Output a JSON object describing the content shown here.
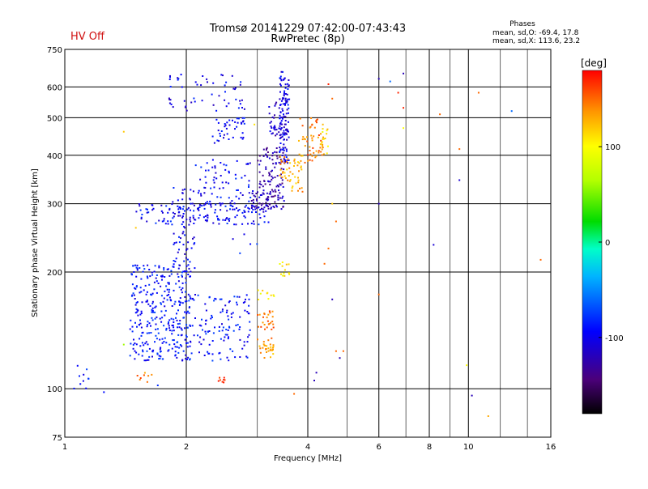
{
  "header": {
    "status": "HV Off",
    "status_color": "#d01010",
    "title_line1": "Tromsø 20141229 07:42:00-07:43:43",
    "title_line2": "RwPretec (8p)",
    "phases_title": "Phases",
    "phases_o": "mean, sd,O: -69.4, 17.8",
    "phases_x": "mean, sd,X: 113.6, 23.2"
  },
  "chart_data": {
    "type": "scatter",
    "xlabel": "Frequency [MHz]",
    "ylabel": "Stationary phase Virtual Height [km]",
    "x_scale": "log",
    "y_scale": "log",
    "xlim": [
      1,
      16
    ],
    "ylim": [
      75,
      750
    ],
    "x_ticks": [
      1,
      2,
      4,
      6,
      8,
      10,
      16
    ],
    "x_tick_labels": [
      "1",
      "2",
      "4",
      "6",
      "8",
      "10",
      "16"
    ],
    "x_minor_ticks": [
      3,
      5,
      7,
      9,
      12,
      14
    ],
    "y_ticks": [
      75,
      100,
      200,
      300,
      400,
      500,
      600,
      750
    ],
    "y_tick_labels": [
      "75",
      "100",
      "200",
      "300",
      "400",
      "500",
      "600",
      "750"
    ],
    "grid": true,
    "colorbar": {
      "label": "[deg]",
      "range": [
        -180,
        180
      ],
      "ticks": [
        100,
        0,
        -100
      ],
      "tick_labels": [
        "100",
        "0",
        "-100"
      ]
    },
    "clusters": [
      {
        "f": [
          1.05,
          1.15
        ],
        "h": [
          98,
          115
        ],
        "phase": -90,
        "count": 10
      },
      {
        "f": [
          1.45,
          2.05
        ],
        "h": [
          118,
          210
        ],
        "phase": -90,
        "count": 330
      },
      {
        "f": [
          2.0,
          2.9
        ],
        "h": [
          118,
          175
        ],
        "phase": -90,
        "count": 130
      },
      {
        "f": [
          1.5,
          3.3
        ],
        "h": [
          265,
          300
        ],
        "phase": -95,
        "count": 140
      },
      {
        "f": [
          1.85,
          2.1
        ],
        "h": [
          200,
          330
        ],
        "phase": -100,
        "count": 60
      },
      {
        "f": [
          2.1,
          2.9
        ],
        "h": [
          300,
          390
        ],
        "phase": -95,
        "count": 70
      },
      {
        "f": [
          2.3,
          2.8
        ],
        "h": [
          430,
          500
        ],
        "phase": -95,
        "count": 40
      },
      {
        "f": [
          1.8,
          2.8
        ],
        "h": [
          520,
          650
        ],
        "phase": -100,
        "count": 55
      },
      {
        "f": [
          2.9,
          3.5
        ],
        "h": [
          290,
          320
        ],
        "phase": -125,
        "count": 70
      },
      {
        "f": [
          3.0,
          3.5
        ],
        "h": [
          320,
          420
        ],
        "phase": -125,
        "count": 80
      },
      {
        "f": [
          3.4,
          3.6
        ],
        "h": [
          380,
          660
        ],
        "phase": -100,
        "count": 110
      },
      {
        "f": [
          3.2,
          3.6
        ],
        "h": [
          440,
          560
        ],
        "phase": -110,
        "count": 40
      },
      {
        "f": [
          3.4,
          3.9
        ],
        "h": [
          320,
          400
        ],
        "phase": 130,
        "count": 50
      },
      {
        "f": [
          3.8,
          4.4
        ],
        "h": [
          380,
          500
        ],
        "phase": 145,
        "count": 55
      },
      {
        "f": [
          4.3,
          4.5
        ],
        "h": [
          400,
          480
        ],
        "phase": 110,
        "count": 14
      },
      {
        "f": [
          3.0,
          3.3
        ],
        "h": [
          140,
          160
        ],
        "phase": 150,
        "count": 25
      },
      {
        "f": [
          3.0,
          3.3
        ],
        "h": [
          120,
          135
        ],
        "phase": 135,
        "count": 30
      },
      {
        "f": [
          3.0,
          3.3
        ],
        "h": [
          165,
          180
        ],
        "phase": 105,
        "count": 10
      },
      {
        "f": [
          3.4,
          3.6
        ],
        "h": [
          195,
          212
        ],
        "phase": 105,
        "count": 12
      },
      {
        "f": [
          2.4,
          2.5
        ],
        "h": [
          103,
          107
        ],
        "phase": 170,
        "count": 8
      },
      {
        "f": [
          1.5,
          1.65
        ],
        "h": [
          104,
          110
        ],
        "phase": 150,
        "count": 8
      },
      {
        "f": [
          2.6,
          3.0
        ],
        "h": [
          200,
          330
        ],
        "phase": -90,
        "count": 20
      }
    ],
    "points": [
      {
        "f": 1.4,
        "h": 460,
        "phase": 120
      },
      {
        "f": 1.5,
        "h": 260,
        "phase": 120
      },
      {
        "f": 1.4,
        "h": 130,
        "phase": 60
      },
      {
        "f": 2.95,
        "h": 480,
        "phase": 110
      },
      {
        "f": 4.6,
        "h": 300,
        "phase": 120
      },
      {
        "f": 4.5,
        "h": 230,
        "phase": 150
      },
      {
        "f": 4.4,
        "h": 210,
        "phase": 150
      },
      {
        "f": 4.7,
        "h": 270,
        "phase": 150
      },
      {
        "f": 4.6,
        "h": 170,
        "phase": -120
      },
      {
        "f": 4.7,
        "h": 125,
        "phase": 150
      },
      {
        "f": 4.9,
        "h": 125,
        "phase": 150
      },
      {
        "f": 4.8,
        "h": 120,
        "phase": -120
      },
      {
        "f": 4.15,
        "h": 105,
        "phase": -120
      },
      {
        "f": 4.2,
        "h": 110,
        "phase": -120
      },
      {
        "f": 3.7,
        "h": 97,
        "phase": 150
      },
      {
        "f": 4.2,
        "h": 410,
        "phase": 130
      },
      {
        "f": 4.5,
        "h": 610,
        "phase": 170
      },
      {
        "f": 4.6,
        "h": 560,
        "phase": 150
      },
      {
        "f": 6.0,
        "h": 630,
        "phase": -120
      },
      {
        "f": 6.0,
        "h": 300,
        "phase": -120
      },
      {
        "f": 6.0,
        "h": 175,
        "phase": 150
      },
      {
        "f": 6.4,
        "h": 620,
        "phase": -60
      },
      {
        "f": 6.9,
        "h": 650,
        "phase": -120
      },
      {
        "f": 6.7,
        "h": 580,
        "phase": 170
      },
      {
        "f": 6.9,
        "h": 530,
        "phase": 170
      },
      {
        "f": 6.9,
        "h": 470,
        "phase": 100
      },
      {
        "f": 8.2,
        "h": 235,
        "phase": -110
      },
      {
        "f": 8.5,
        "h": 510,
        "phase": 150
      },
      {
        "f": 9.5,
        "h": 415,
        "phase": 150
      },
      {
        "f": 9.5,
        "h": 345,
        "phase": -110
      },
      {
        "f": 9.9,
        "h": 115,
        "phase": 100
      },
      {
        "f": 10.2,
        "h": 96,
        "phase": -120
      },
      {
        "f": 10.6,
        "h": 580,
        "phase": 150
      },
      {
        "f": 11.2,
        "h": 85,
        "phase": 130
      },
      {
        "f": 12.8,
        "h": 520,
        "phase": -60
      },
      {
        "f": 15.1,
        "h": 215,
        "phase": 150
      },
      {
        "f": 1.25,
        "h": 98,
        "phase": -90
      },
      {
        "f": 1.7,
        "h": 102,
        "phase": -80
      }
    ]
  }
}
